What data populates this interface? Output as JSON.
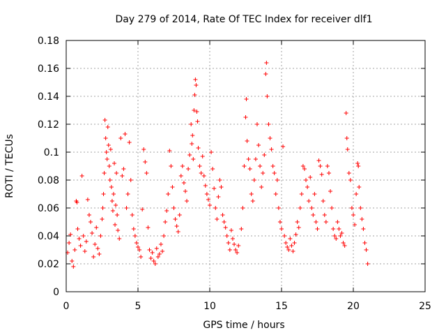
{
  "chart_data": {
    "type": "scatter",
    "title": "Day 279 of 2014, Rate Of TEC Index for receiver dlf1",
    "xlabel": "GPS time / hours",
    "ylabel": "ROTI / TECUs",
    "xlim": [
      0,
      25
    ],
    "ylim": [
      0,
      0.18
    ],
    "xticks": [
      0,
      5,
      10,
      15,
      20,
      25
    ],
    "yticks": [
      0,
      0.02,
      0.04,
      0.06,
      0.08,
      0.1,
      0.12,
      0.14,
      0.16,
      0.18
    ],
    "xtick_labels": [
      "0",
      "5",
      "10",
      "15",
      "20",
      "25"
    ],
    "ytick_labels": [
      "0",
      "0.02",
      "0.04",
      "0.06",
      "0.08",
      "0.1",
      "0.12",
      "0.14",
      "0.16",
      "0.18"
    ],
    "grid": true,
    "marker": "+",
    "marker_color": "#ff0000",
    "series": [
      {
        "name": "ROTI",
        "points": [
          [
            0.1,
            0.028
          ],
          [
            0.2,
            0.035
          ],
          [
            0.3,
            0.041
          ],
          [
            0.4,
            0.022
          ],
          [
            0.5,
            0.018
          ],
          [
            0.6,
            0.03
          ],
          [
            0.7,
            0.065
          ],
          [
            0.75,
            0.064
          ],
          [
            0.8,
            0.045
          ],
          [
            0.9,
            0.038
          ],
          [
            1.0,
            0.033
          ],
          [
            1.1,
            0.083
          ],
          [
            1.2,
            0.04
          ],
          [
            1.3,
            0.029
          ],
          [
            1.4,
            0.036
          ],
          [
            1.5,
            0.066
          ],
          [
            1.6,
            0.055
          ],
          [
            1.7,
            0.05
          ],
          [
            1.8,
            0.042
          ],
          [
            1.9,
            0.025
          ],
          [
            2.0,
            0.034
          ],
          [
            2.1,
            0.046
          ],
          [
            2.2,
            0.031
          ],
          [
            2.3,
            0.027
          ],
          [
            2.4,
            0.04
          ],
          [
            2.5,
            0.052
          ],
          [
            2.55,
            0.06
          ],
          [
            2.6,
            0.07
          ],
          [
            2.65,
            0.085
          ],
          [
            2.7,
            0.123
          ],
          [
            2.75,
            0.11
          ],
          [
            2.8,
            0.1
          ],
          [
            2.85,
            0.095
          ],
          [
            2.9,
            0.118
          ],
          [
            2.95,
            0.105
          ],
          [
            3.0,
            0.09
          ],
          [
            3.05,
            0.08
          ],
          [
            3.1,
            0.102
          ],
          [
            3.15,
            0.075
          ],
          [
            3.2,
            0.065
          ],
          [
            3.25,
            0.058
          ],
          [
            3.3,
            0.07
          ],
          [
            3.35,
            0.092
          ],
          [
            3.4,
            0.048
          ],
          [
            3.45,
            0.062
          ],
          [
            3.5,
            0.085
          ],
          [
            3.55,
            0.055
          ],
          [
            3.6,
            0.044
          ],
          [
            3.7,
            0.038
          ],
          [
            3.8,
            0.11
          ],
          [
            3.9,
            0.083
          ],
          [
            4.0,
            0.088
          ],
          [
            4.1,
            0.113
          ],
          [
            4.2,
            0.06
          ],
          [
            4.3,
            0.07
          ],
          [
            4.4,
            0.107
          ],
          [
            4.5,
            0.08
          ],
          [
            4.6,
            0.055
          ],
          [
            4.7,
            0.045
          ],
          [
            4.8,
            0.04
          ],
          [
            4.9,
            0.035
          ],
          [
            5.0,
            0.032
          ],
          [
            5.1,
            0.03
          ],
          [
            5.2,
            0.025
          ],
          [
            5.3,
            0.059
          ],
          [
            5.4,
            0.102
          ],
          [
            5.5,
            0.093
          ],
          [
            5.6,
            0.085
          ],
          [
            5.7,
            0.046
          ],
          [
            5.8,
            0.03
          ],
          [
            5.9,
            0.024
          ],
          [
            6.0,
            0.028
          ],
          [
            6.1,
            0.022
          ],
          [
            6.2,
            0.02
          ],
          [
            6.3,
            0.031
          ],
          [
            6.4,
            0.025
          ],
          [
            6.5,
            0.027
          ],
          [
            6.6,
            0.034
          ],
          [
            6.7,
            0.029
          ],
          [
            6.8,
            0.04
          ],
          [
            6.9,
            0.05
          ],
          [
            7.0,
            0.058
          ],
          [
            7.1,
            0.07
          ],
          [
            7.2,
            0.101
          ],
          [
            7.3,
            0.09
          ],
          [
            7.4,
            0.075
          ],
          [
            7.5,
            0.06
          ],
          [
            7.6,
            0.052
          ],
          [
            7.7,
            0.047
          ],
          [
            7.8,
            0.043
          ],
          [
            7.9,
            0.055
          ],
          [
            8.0,
            0.083
          ],
          [
            8.1,
            0.09
          ],
          [
            8.2,
            0.078
          ],
          [
            8.3,
            0.072
          ],
          [
            8.4,
            0.065
          ],
          [
            8.5,
            0.088
          ],
          [
            8.6,
            0.098
          ],
          [
            8.7,
            0.12
          ],
          [
            8.75,
            0.106
          ],
          [
            8.8,
            0.112
          ],
          [
            8.85,
            0.095
          ],
          [
            8.9,
            0.13
          ],
          [
            8.95,
            0.141
          ],
          [
            9.0,
            0.152
          ],
          [
            9.05,
            0.148
          ],
          [
            9.1,
            0.129
          ],
          [
            9.15,
            0.122
          ],
          [
            9.2,
            0.103
          ],
          [
            9.3,
            0.09
          ],
          [
            9.4,
            0.085
          ],
          [
            9.5,
            0.097
          ],
          [
            9.6,
            0.083
          ],
          [
            9.7,
            0.076
          ],
          [
            9.8,
            0.07
          ],
          [
            9.9,
            0.066
          ],
          [
            10.0,
            0.062
          ],
          [
            10.1,
            0.1
          ],
          [
            10.2,
            0.088
          ],
          [
            10.3,
            0.074
          ],
          [
            10.4,
            0.06
          ],
          [
            10.5,
            0.052
          ],
          [
            10.6,
            0.068
          ],
          [
            10.7,
            0.08
          ],
          [
            10.8,
            0.075
          ],
          [
            10.9,
            0.055
          ],
          [
            11.0,
            0.05
          ],
          [
            11.1,
            0.046
          ],
          [
            11.2,
            0.04
          ],
          [
            11.3,
            0.035
          ],
          [
            11.4,
            0.03
          ],
          [
            11.5,
            0.044
          ],
          [
            11.6,
            0.038
          ],
          [
            11.7,
            0.034
          ],
          [
            11.8,
            0.03
          ],
          [
            11.9,
            0.028
          ],
          [
            12.0,
            0.033
          ],
          [
            12.2,
            0.045
          ],
          [
            12.3,
            0.06
          ],
          [
            12.4,
            0.09
          ],
          [
            12.5,
            0.125
          ],
          [
            12.55,
            0.138
          ],
          [
            12.6,
            0.108
          ],
          [
            12.7,
            0.095
          ],
          [
            12.8,
            0.088
          ],
          [
            12.9,
            0.07
          ],
          [
            13.0,
            0.065
          ],
          [
            13.1,
            0.08
          ],
          [
            13.2,
            0.095
          ],
          [
            13.3,
            0.12
          ],
          [
            13.4,
            0.105
          ],
          [
            13.5,
            0.09
          ],
          [
            13.6,
            0.075
          ],
          [
            13.7,
            0.085
          ],
          [
            13.8,
            0.098
          ],
          [
            13.9,
            0.156
          ],
          [
            13.95,
            0.164
          ],
          [
            14.0,
            0.14
          ],
          [
            14.1,
            0.12
          ],
          [
            14.2,
            0.11
          ],
          [
            14.3,
            0.102
          ],
          [
            14.4,
            0.09
          ],
          [
            14.5,
            0.085
          ],
          [
            14.6,
            0.07
          ],
          [
            14.7,
            0.08
          ],
          [
            14.8,
            0.06
          ],
          [
            14.9,
            0.05
          ],
          [
            15.0,
            0.045
          ],
          [
            15.1,
            0.104
          ],
          [
            15.2,
            0.04
          ],
          [
            15.3,
            0.035
          ],
          [
            15.4,
            0.032
          ],
          [
            15.5,
            0.03
          ],
          [
            15.6,
            0.038
          ],
          [
            15.7,
            0.033
          ],
          [
            15.8,
            0.029
          ],
          [
            15.9,
            0.035
          ],
          [
            16.0,
            0.041
          ],
          [
            16.1,
            0.05
          ],
          [
            16.2,
            0.046
          ],
          [
            16.3,
            0.06
          ],
          [
            16.4,
            0.07
          ],
          [
            16.5,
            0.09
          ],
          [
            16.6,
            0.088
          ],
          [
            16.7,
            0.08
          ],
          [
            16.8,
            0.075
          ],
          [
            16.9,
            0.065
          ],
          [
            17.0,
            0.082
          ],
          [
            17.1,
            0.06
          ],
          [
            17.2,
            0.055
          ],
          [
            17.3,
            0.07
          ],
          [
            17.4,
            0.05
          ],
          [
            17.5,
            0.045
          ],
          [
            17.6,
            0.094
          ],
          [
            17.7,
            0.09
          ],
          [
            17.8,
            0.084
          ],
          [
            17.9,
            0.065
          ],
          [
            18.0,
            0.055
          ],
          [
            18.1,
            0.05
          ],
          [
            18.2,
            0.09
          ],
          [
            18.3,
            0.085
          ],
          [
            18.4,
            0.072
          ],
          [
            18.5,
            0.06
          ],
          [
            18.6,
            0.045
          ],
          [
            18.7,
            0.04
          ],
          [
            18.8,
            0.038
          ],
          [
            18.9,
            0.05
          ],
          [
            19.0,
            0.045
          ],
          [
            19.1,
            0.04
          ],
          [
            19.2,
            0.042
          ],
          [
            19.3,
            0.035
          ],
          [
            19.4,
            0.033
          ],
          [
            19.5,
            0.128
          ],
          [
            19.55,
            0.11
          ],
          [
            19.6,
            0.102
          ],
          [
            19.7,
            0.085
          ],
          [
            19.8,
            0.08
          ],
          [
            19.9,
            0.06
          ],
          [
            20.0,
            0.055
          ],
          [
            20.1,
            0.048
          ],
          [
            20.2,
            0.07
          ],
          [
            20.3,
            0.092
          ],
          [
            20.35,
            0.09
          ],
          [
            20.4,
            0.075
          ],
          [
            20.5,
            0.06
          ],
          [
            20.6,
            0.052
          ],
          [
            20.7,
            0.045
          ],
          [
            20.8,
            0.035
          ],
          [
            20.9,
            0.03
          ],
          [
            21.0,
            0.02
          ]
        ]
      }
    ]
  }
}
